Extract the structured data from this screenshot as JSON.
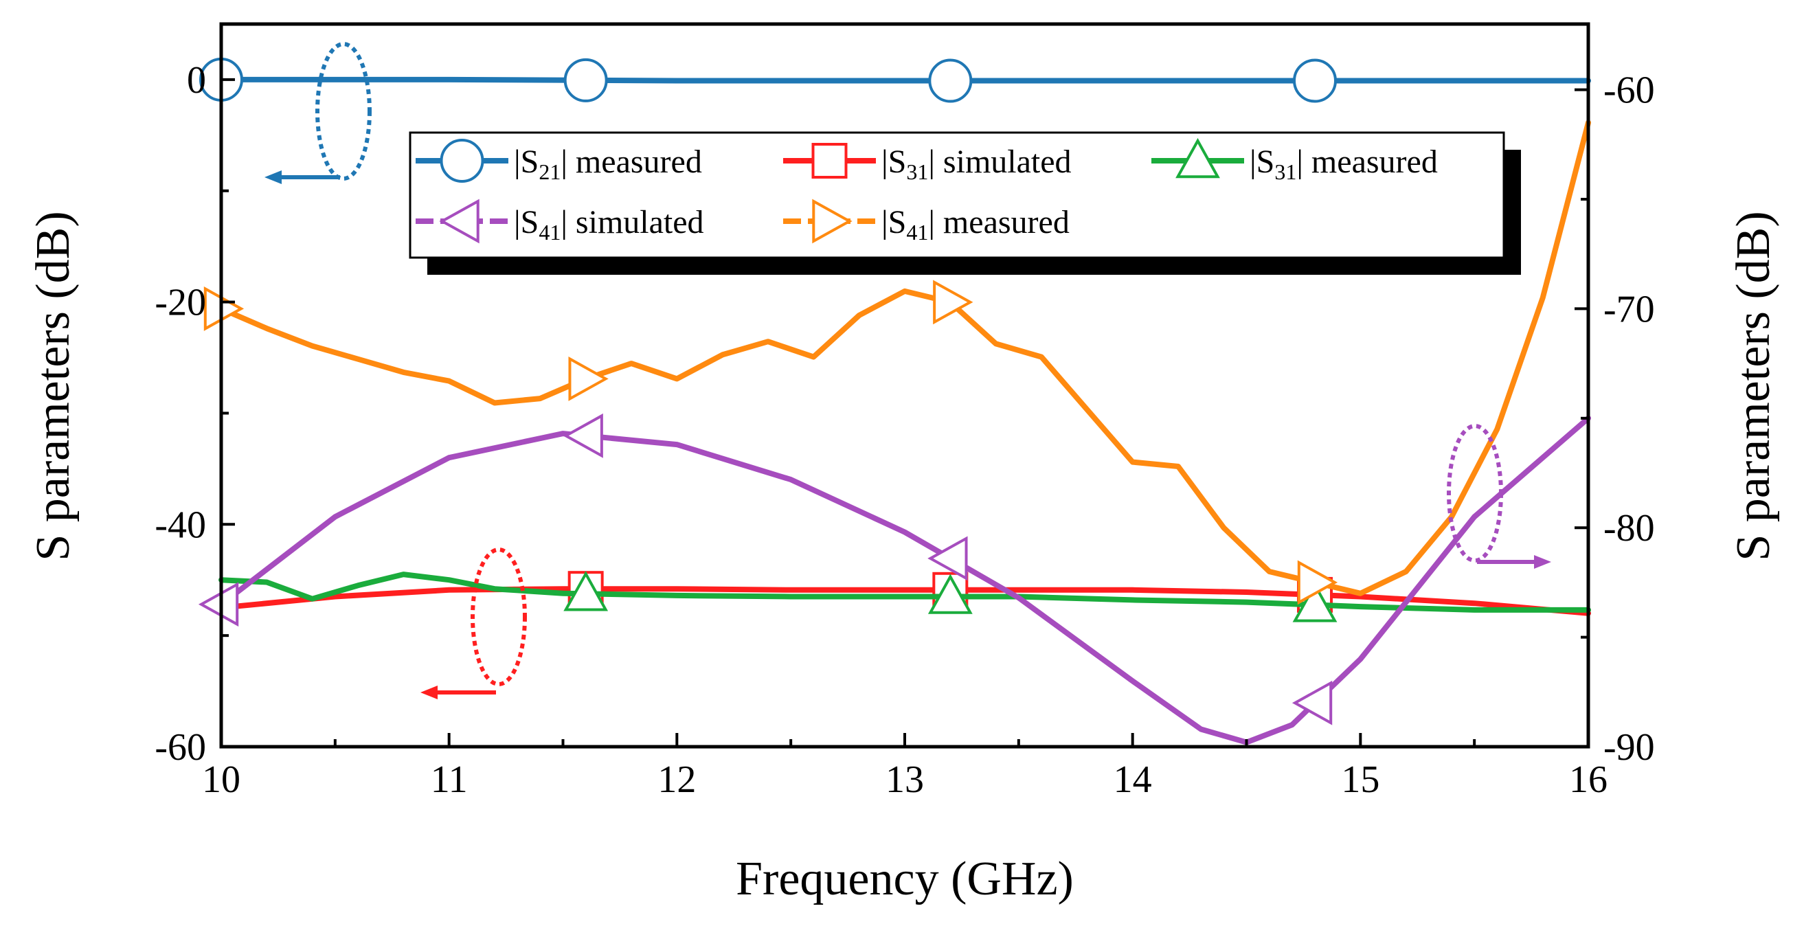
{
  "chart_data": {
    "type": "line",
    "title": "",
    "xlabel": "Frequency (GHz)",
    "ylabel_left": "S parameters (dB)",
    "ylabel_right": "S parameters (dB)",
    "xlim": [
      10,
      16
    ],
    "ylim_left": [
      -60,
      5
    ],
    "ylim_right": [
      -90,
      -57
    ],
    "x_ticks": [
      10,
      11,
      12,
      13,
      14,
      15,
      16
    ],
    "x_tick_labels": [
      "10",
      "11",
      "12",
      "13",
      "14",
      "15",
      "16"
    ],
    "y_left_ticks": [
      0,
      -20,
      -40,
      -60
    ],
    "y_left_tick_labels": [
      "0",
      "-20",
      "-40",
      "-60"
    ],
    "y_right_ticks": [
      -60,
      -70,
      -80,
      -90
    ],
    "y_right_tick_labels": [
      "-60",
      "-70",
      "-80",
      "-90"
    ],
    "grid": false,
    "legend_position": "top-center",
    "series": [
      {
        "name": "|S21| measured",
        "label_base": "|S",
        "label_sub": "21",
        "label_rest": "| measured",
        "axis": "left",
        "color": "#1f77b4",
        "marker": "circle",
        "dash": false,
        "x": [
          10,
          11,
          12,
          13,
          14,
          15,
          16
        ],
        "y": [
          0,
          0,
          -0.1,
          -0.1,
          -0.1,
          -0.1,
          -0.1
        ],
        "marker_x": [
          10,
          11.6,
          13.2,
          14.8
        ]
      },
      {
        "name": "|S31| simulated",
        "label_base": "|S",
        "label_sub": "31",
        "label_rest": "| simulated",
        "axis": "left",
        "color": "#ff1f1f",
        "marker": "square",
        "dash": false,
        "x": [
          10,
          10.5,
          11,
          11.5,
          12,
          12.5,
          13,
          13.5,
          14,
          14.5,
          15,
          15.5,
          16
        ],
        "y": [
          -47.5,
          -46.5,
          -45.9,
          -45.8,
          -45.8,
          -45.9,
          -45.9,
          -45.9,
          -45.9,
          -46.1,
          -46.5,
          -47.1,
          -48
        ],
        "marker_x": [
          11.6,
          13.2,
          14.8
        ]
      },
      {
        "name": "|S31| measured",
        "label_base": "|S",
        "label_sub": "31",
        "label_rest": "| measured",
        "axis": "left",
        "color": "#1aac3c",
        "marker": "triangle-up",
        "dash": false,
        "x": [
          10,
          10.2,
          10.4,
          10.6,
          10.8,
          11,
          11.2,
          11.5,
          12,
          12.5,
          13,
          13.5,
          14,
          14.5,
          15,
          15.5,
          16
        ],
        "y": [
          -45,
          -45.2,
          -46.7,
          -45.5,
          -44.5,
          -45,
          -45.8,
          -46.2,
          -46.4,
          -46.5,
          -46.5,
          -46.5,
          -46.8,
          -47,
          -47.4,
          -47.7,
          -47.7
        ],
        "marker_x": [
          11.6,
          13.2,
          14.8
        ]
      },
      {
        "name": "|S41| simulated",
        "label_base": "|S",
        "label_sub": "41",
        "label_rest": "| simulated",
        "axis": "right",
        "color": "#a64dbe",
        "marker": "triangle-left",
        "dash": true,
        "x": [
          10,
          10.5,
          11,
          11.5,
          12,
          12.5,
          13,
          13.5,
          14,
          14.3,
          14.5,
          14.7,
          15,
          15.5,
          16
        ],
        "y": [
          -83.5,
          -79.5,
          -76.8,
          -75.7,
          -76.2,
          -77.8,
          -80.2,
          -83.2,
          -87,
          -89.2,
          -89.8,
          -89,
          -86,
          -79.5,
          -75
        ],
        "marker_x": [
          10,
          11.6,
          13.2,
          14.8
        ]
      },
      {
        "name": "|S41| measured",
        "label_base": "|S",
        "label_sub": "41",
        "label_rest": "| measured",
        "axis": "right",
        "color": "#ff8a10",
        "marker": "triangle-right",
        "dash": true,
        "x": [
          10,
          10.2,
          10.4,
          10.6,
          10.8,
          11,
          11.2,
          11.4,
          11.6,
          11.8,
          12,
          12.2,
          12.4,
          12.6,
          12.8,
          13,
          13.2,
          13.4,
          13.6,
          13.8,
          14,
          14.2,
          14.4,
          14.6,
          14.8,
          15,
          15.2,
          15.4,
          15.6,
          15.8,
          16
        ],
        "y": [
          -70,
          -70.9,
          -71.7,
          -72.3,
          -72.9,
          -73.3,
          -74.3,
          -74.1,
          -73.2,
          -72.5,
          -73.2,
          -72.1,
          -71.5,
          -72.2,
          -70.3,
          -69.2,
          -69.7,
          -71.6,
          -72.2,
          -74.6,
          -77,
          -77.2,
          -80,
          -82,
          -82.5,
          -83,
          -82,
          -79.5,
          -75.5,
          -69.5,
          -61.5
        ],
        "marker_x": [
          10,
          11.6,
          13.2,
          14.8
        ]
      }
    ]
  }
}
